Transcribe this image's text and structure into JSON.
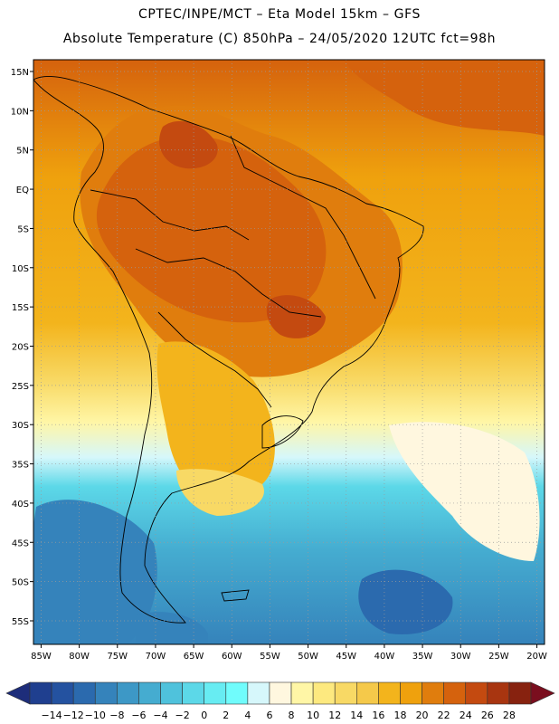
{
  "header": {
    "line1": "CPTEC/INPE/MCT –  Eta Model 15km – GFS",
    "line2": "Absolute Temperature (C) 850hPa – 24/05/2020 12UTC fct=98h"
  },
  "map": {
    "lat_labels": [
      "15N",
      "10N",
      "5N",
      "EQ",
      "5S",
      "10S",
      "15S",
      "20S",
      "25S",
      "30S",
      "35S",
      "40S",
      "45S",
      "50S",
      "55S"
    ],
    "lon_labels": [
      "85W",
      "80W",
      "75W",
      "70W",
      "65W",
      "60W",
      "55W",
      "50W",
      "45W",
      "40W",
      "35W",
      "30W",
      "25W",
      "20W"
    ],
    "extent": {
      "west": -86,
      "east": -19,
      "north": 16.5,
      "south": -58
    }
  },
  "colorbar": {
    "labels": [
      "-14",
      "-12",
      "-10",
      "-8",
      "-6",
      "-4",
      "-2",
      "0",
      "2",
      "4",
      "6",
      "8",
      "10",
      "12",
      "14",
      "16",
      "18",
      "20",
      "22",
      "24",
      "26",
      "28"
    ],
    "colors": [
      "#1f3f8f",
      "#2452a0",
      "#2b6aae",
      "#3583bb",
      "#3d98c6",
      "#45acd0",
      "#4fc2dc",
      "#5cd8e8",
      "#67ecf2",
      "#70fcfc",
      "#d6f7fb",
      "#fff7df",
      "#fff6a6",
      "#fde97f",
      "#f8d965",
      "#f5c94a",
      "#f3b41c",
      "#efa10d",
      "#e07d0d",
      "#d5620d",
      "#c44a10",
      "#a83510",
      "#87220f"
    ],
    "low_arrow_color": "#1d2d7a",
    "high_arrow_color": "#7a0e1e"
  }
}
